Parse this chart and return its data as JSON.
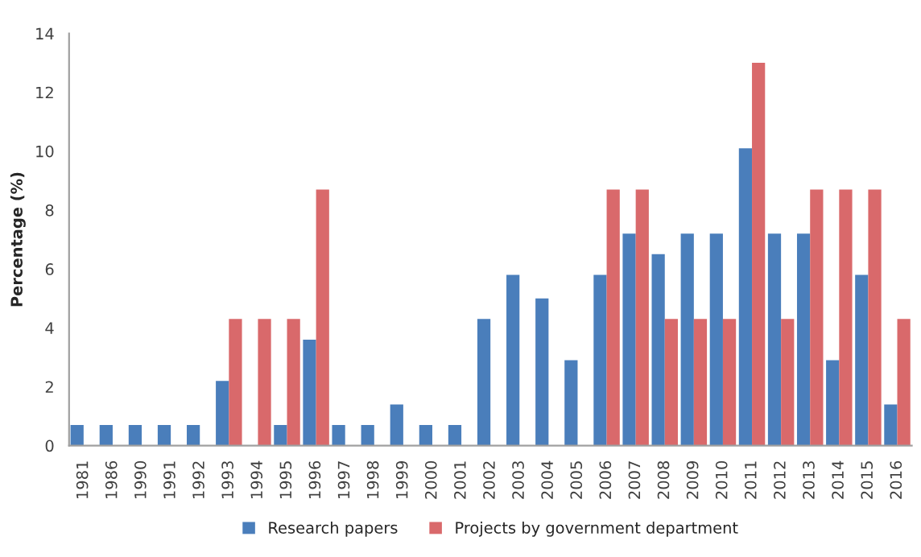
{
  "chart_data": {
    "type": "bar",
    "ylabel": "Percentage (%)",
    "categories": [
      "1981",
      "1986",
      "1990",
      "1991",
      "1992",
      "1993",
      "1994",
      "1995",
      "1996",
      "1997",
      "1998",
      "1999",
      "2000",
      "2001",
      "2002",
      "2003",
      "2004",
      "2005",
      "2006",
      "2007",
      "2008",
      "2009",
      "2010",
      "2011",
      "2012",
      "2013",
      "2014",
      "2015",
      "2016"
    ],
    "series": [
      {
        "name": "Research papers",
        "color": "#4a7ebb",
        "values": [
          0.7,
          0.7,
          0.7,
          0.7,
          0.7,
          2.2,
          null,
          0.7,
          3.6,
          0.7,
          0.7,
          1.4,
          0.7,
          0.7,
          4.3,
          5.8,
          5.0,
          2.9,
          5.8,
          7.2,
          6.5,
          7.2,
          7.2,
          10.1,
          7.2,
          7.2,
          2.9,
          5.8,
          1.4
        ]
      },
      {
        "name": "Projects by government department",
        "color": "#d9696b",
        "values": [
          null,
          null,
          null,
          null,
          null,
          4.3,
          4.3,
          4.3,
          8.7,
          null,
          null,
          null,
          null,
          null,
          null,
          null,
          null,
          null,
          8.7,
          8.7,
          4.3,
          4.3,
          4.3,
          13.0,
          4.3,
          8.7,
          8.7,
          8.7,
          4.3
        ]
      }
    ],
    "ylim": [
      0,
      14
    ],
    "yticks": [
      0,
      2,
      4,
      6,
      8,
      10,
      12,
      14
    ],
    "grid": false,
    "legend": "bottom"
  }
}
